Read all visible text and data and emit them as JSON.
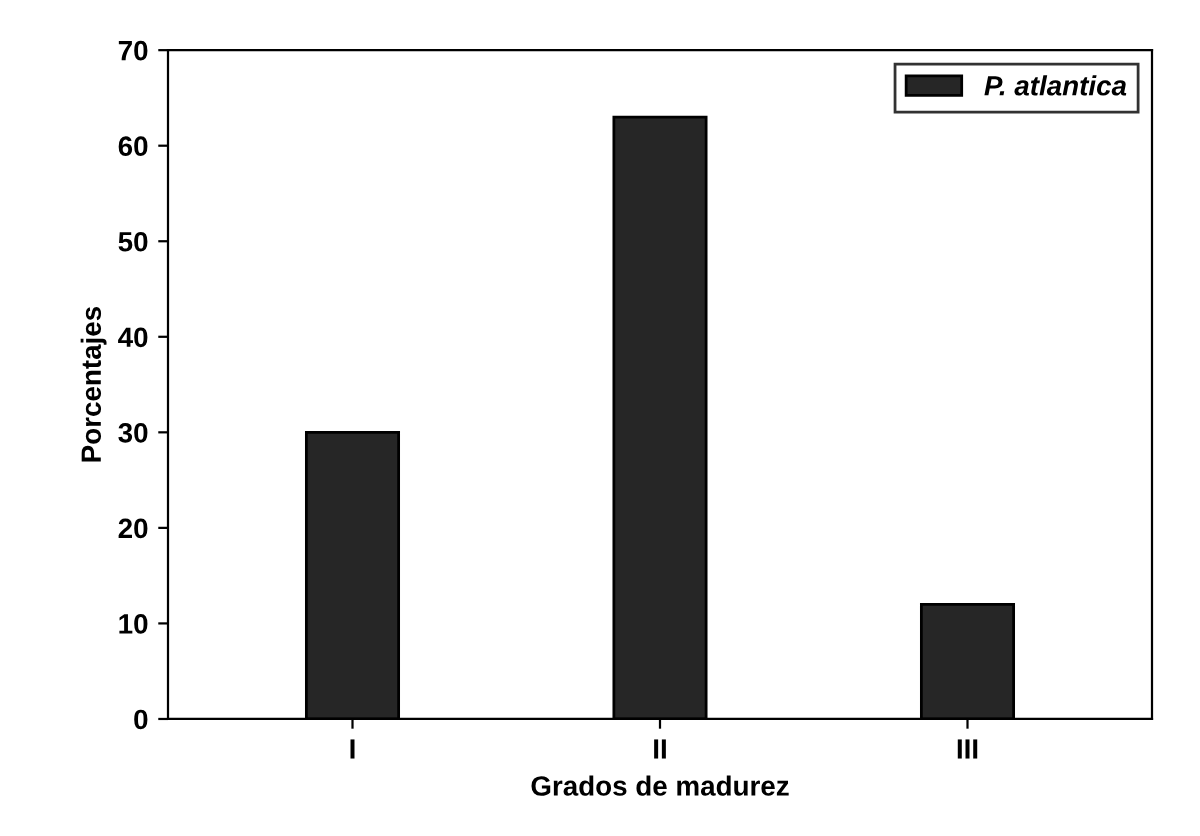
{
  "chart_data": {
    "type": "bar",
    "xlabel": "Grados de madurez",
    "ylabel": "Porcentajes",
    "categories": [
      "I",
      "II",
      "III"
    ],
    "series": [
      {
        "name": "P. atlantica",
        "color": "#262626",
        "values": [
          30,
          63,
          12
        ]
      }
    ],
    "ylim": [
      0,
      70
    ],
    "yticks": [
      0,
      10,
      20,
      30,
      40,
      50,
      60,
      70
    ],
    "grid": false,
    "legend": "top right"
  }
}
